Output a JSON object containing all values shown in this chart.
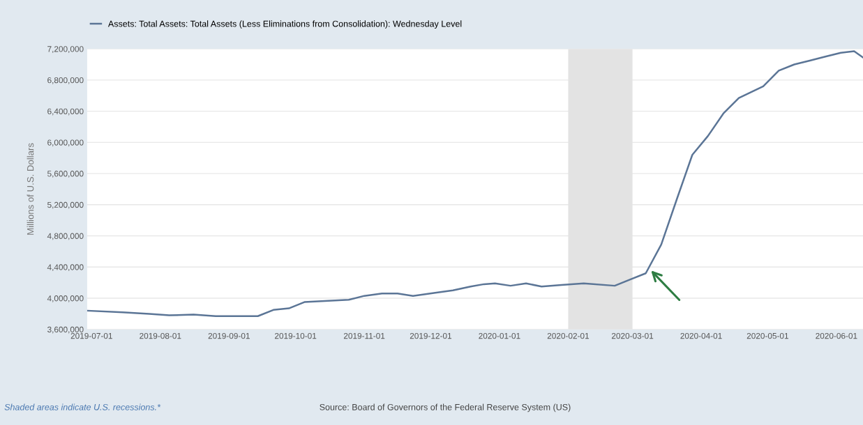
{
  "chart_data": {
    "type": "line",
    "ylabel": "Millions of U.S. Dollars",
    "x": [
      "2019-06-29",
      "2019-07-15",
      "2019-07-27",
      "2019-08-05",
      "2019-08-16",
      "2019-08-26",
      "2019-09-14",
      "2019-09-21",
      "2019-09-28",
      "2019-10-05",
      "2019-10-25",
      "2019-11-01",
      "2019-11-09",
      "2019-11-16",
      "2019-11-23",
      "2019-12-03",
      "2019-12-11",
      "2019-12-19",
      "2019-12-25",
      "2019-12-30",
      "2020-01-06",
      "2020-01-13",
      "2020-01-20",
      "2020-01-29",
      "2020-02-08",
      "2020-02-22",
      "2020-02-29",
      "2020-03-07",
      "2020-03-14",
      "2020-03-21",
      "2020-03-28",
      "2020-04-04",
      "2020-04-11",
      "2020-04-18",
      "2020-04-29",
      "2020-05-06",
      "2020-05-13",
      "2020-05-20",
      "2020-05-27",
      "2020-06-03",
      "2020-06-09",
      "2020-06-13"
    ],
    "series": [
      {
        "name": "Assets: Total Assets: Total Assets (Less Eliminations from Consolidation): Wednesday Level",
        "color": "#5b7596",
        "values": [
          3840000,
          3820000,
          3800000,
          3780000,
          3790000,
          3770000,
          3770000,
          3850000,
          3870000,
          3950000,
          3980000,
          4030000,
          4060000,
          4060000,
          4030000,
          4070000,
          4100000,
          4150000,
          4180000,
          4190000,
          4160000,
          4190000,
          4150000,
          4170000,
          4190000,
          4160000,
          4240000,
          4320000,
          4690000,
          5270000,
          5840000,
          6080000,
          6370000,
          6570000,
          6720000,
          6920000,
          7000000,
          7050000,
          7100000,
          7150000,
          7170000,
          7090000
        ]
      }
    ],
    "xlim": [
      "2019-06-29",
      "2020-06-13"
    ],
    "xticks": [
      "2019-07-01",
      "2019-08-01",
      "2019-09-01",
      "2019-10-01",
      "2019-11-01",
      "2019-12-01",
      "2020-01-01",
      "2020-02-01",
      "2020-03-01",
      "2020-04-01",
      "2020-05-01",
      "2020-06-01"
    ],
    "ylim": [
      3600000,
      7200000
    ],
    "yticks": [
      {
        "value": 3600000,
        "label": "3,600,000"
      },
      {
        "value": 4000000,
        "label": "4,000,000"
      },
      {
        "value": 4400000,
        "label": "4,400,000"
      },
      {
        "value": 4800000,
        "label": "4,800,000"
      },
      {
        "value": 5200000,
        "label": "5,200,000"
      },
      {
        "value": 5600000,
        "label": "5,600,000"
      },
      {
        "value": 6000000,
        "label": "6,000,000"
      },
      {
        "value": 6400000,
        "label": "6,400,000"
      },
      {
        "value": 6800000,
        "label": "6,800,000"
      },
      {
        "value": 7200000,
        "label": "7,200,000"
      }
    ],
    "bands": [
      {
        "axis": "x",
        "from": "2020-02-01",
        "to": "2020-03-01",
        "color": "#e3e3e3"
      }
    ],
    "grid": "y",
    "legend": "top left",
    "annotations": [
      "Shaded areas indicate U.S. recessions.*",
      "Source: Board of Governors of the Federal Reserve System (US)"
    ]
  }
}
